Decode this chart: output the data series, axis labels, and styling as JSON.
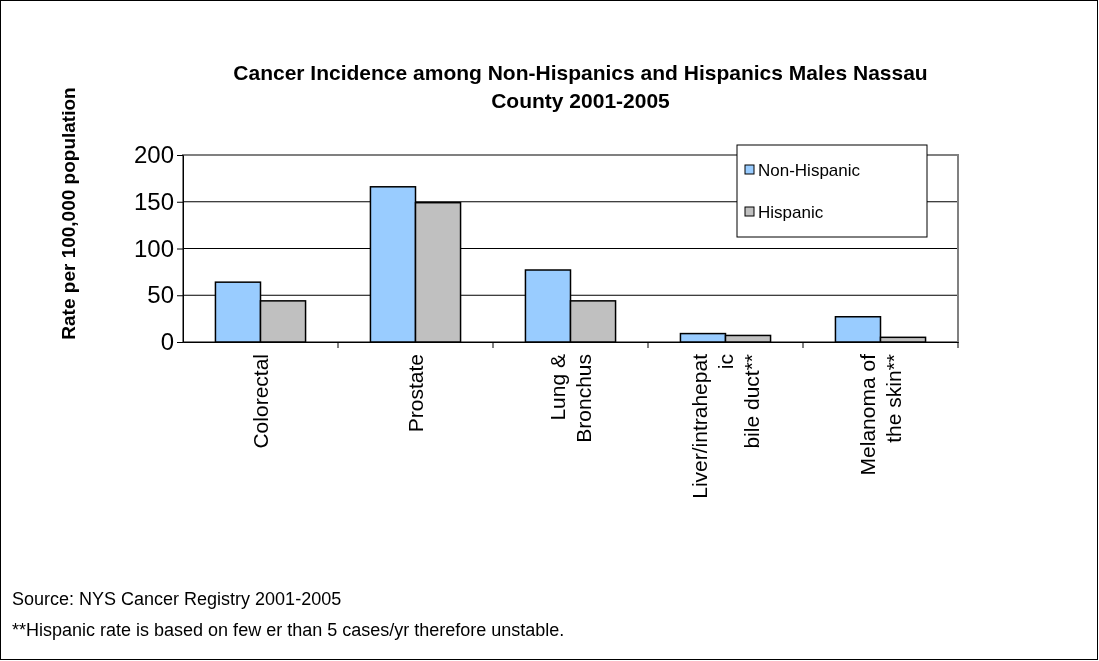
{
  "chart_data": {
    "type": "bar",
    "title": "Cancer Incidence among Non-Hispanics and Hispanics Males Nassau County 2001-2005",
    "ylabel": "Rate per 100,000 population",
    "categories": [
      "Colorectal",
      "Prostate",
      "Lung & Bronchus",
      "Liver/intrahepatic bile duct**",
      "Melanoma of the skin**"
    ],
    "series": [
      {
        "name": "Non-Hispanic",
        "color": "#99ccff",
        "values": [
          64,
          166,
          77,
          9,
          27
        ]
      },
      {
        "name": "Hispanic",
        "color": "#c0c0c0",
        "values": [
          44,
          149,
          44,
          7,
          5
        ]
      }
    ],
    "ylim": [
      0,
      200
    ],
    "yticks": [
      0,
      50,
      100,
      150,
      200
    ],
    "grid": "y",
    "legend": "top right",
    "annotations": [
      "Source: NYS Cancer Registry 2001-2005",
      "**Hispanic rate is based on few er than 5 cases/yr therefore  unstable."
    ]
  }
}
